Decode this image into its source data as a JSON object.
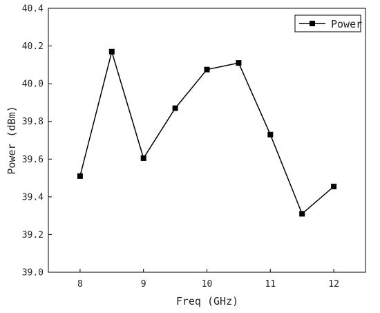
{
  "chart_data": {
    "type": "line",
    "title": "",
    "xlabel": "Freq (GHz)",
    "ylabel": "Power (dBm)",
    "xlim": [
      7.5,
      12.5
    ],
    "ylim": [
      39.0,
      40.4
    ],
    "xticks": [
      "8",
      "9",
      "10",
      "11",
      "12"
    ],
    "yticks": [
      "39.0",
      "39.2",
      "39.4",
      "39.6",
      "39.8",
      "40.0",
      "40.2",
      "40.4"
    ],
    "grid": false,
    "legend": "top-right",
    "series": [
      {
        "name": "Power",
        "color": "#000000",
        "marker": "square",
        "x": [
          8,
          8.5,
          9,
          9.5,
          10,
          10.5,
          11,
          11.5,
          12
        ],
        "y": [
          39.51,
          40.17,
          39.605,
          39.87,
          40.075,
          40.11,
          39.73,
          39.31,
          39.455
        ]
      }
    ]
  }
}
